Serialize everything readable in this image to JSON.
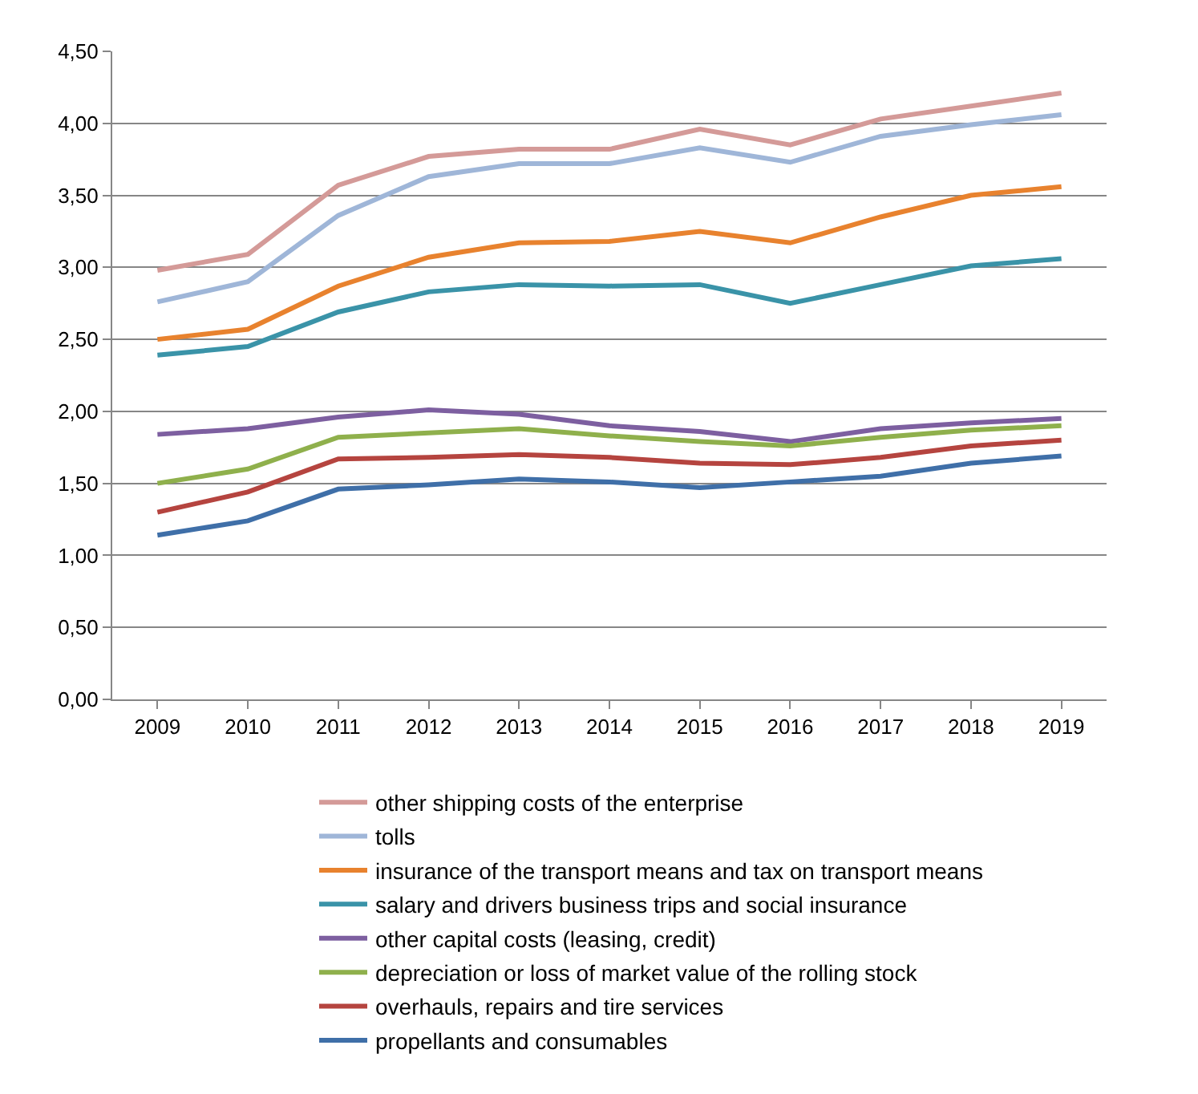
{
  "chart_data": {
    "type": "line",
    "categories": [
      "2009",
      "2010",
      "2011",
      "2012",
      "2013",
      "2014",
      "2015",
      "2016",
      "2017",
      "2018",
      "2019"
    ],
    "series": [
      {
        "name": "other shipping costs of the enterprise",
        "color": "#d49a98",
        "values": [
          2.98,
          3.09,
          3.57,
          3.77,
          3.82,
          3.82,
          3.96,
          3.85,
          4.03,
          4.12,
          4.21
        ]
      },
      {
        "name": "tolls",
        "color": "#9fb6d8",
        "values": [
          2.76,
          2.9,
          3.36,
          3.63,
          3.72,
          3.72,
          3.83,
          3.73,
          3.91,
          3.99,
          4.06
        ]
      },
      {
        "name": "insurance of the transport means and tax on transport means",
        "color": "#e8822e",
        "values": [
          2.5,
          2.57,
          2.87,
          3.07,
          3.17,
          3.18,
          3.25,
          3.17,
          3.35,
          3.5,
          3.56
        ]
      },
      {
        "name": "salary and drivers business trips and social insurance",
        "color": "#3a93a8",
        "values": [
          2.39,
          2.45,
          2.69,
          2.83,
          2.88,
          2.87,
          2.88,
          2.75,
          2.88,
          3.01,
          3.06
        ]
      },
      {
        "name": "other capital costs (leasing, credit)",
        "color": "#7d5fa0",
        "values": [
          1.84,
          1.88,
          1.96,
          2.01,
          1.98,
          1.9,
          1.86,
          1.79,
          1.88,
          1.92,
          1.95
        ]
      },
      {
        "name": "depreciation or loss of market value of the rolling stock",
        "color": "#8fb04c",
        "values": [
          1.5,
          1.6,
          1.82,
          1.85,
          1.88,
          1.83,
          1.79,
          1.76,
          1.82,
          1.87,
          1.9
        ]
      },
      {
        "name": "overhauls, repairs and tire services",
        "color": "#b5443f",
        "values": [
          1.3,
          1.44,
          1.67,
          1.68,
          1.7,
          1.68,
          1.64,
          1.63,
          1.68,
          1.76,
          1.8
        ]
      },
      {
        "name": "propellants and consumables",
        "color": "#3f6fa8",
        "values": [
          1.14,
          1.24,
          1.46,
          1.49,
          1.53,
          1.51,
          1.47,
          1.51,
          1.55,
          1.64,
          1.69
        ]
      }
    ],
    "ylim": [
      0,
      4.5
    ],
    "yticks": [
      {
        "value": 0,
        "label": "0,00"
      },
      {
        "value": 0.5,
        "label": "0,50"
      },
      {
        "value": 1,
        "label": "1,00"
      },
      {
        "value": 1.5,
        "label": "1,50"
      },
      {
        "value": 2,
        "label": "2,00"
      },
      {
        "value": 2.5,
        "label": "2,50"
      },
      {
        "value": 3,
        "label": "3,00"
      },
      {
        "value": 3.5,
        "label": "3,50"
      },
      {
        "value": 4,
        "label": "4,00"
      },
      {
        "value": 4.5,
        "label": "4,50"
      }
    ],
    "grid": "y",
    "legend": "bottom",
    "marker": "none",
    "line_style": "solid"
  }
}
